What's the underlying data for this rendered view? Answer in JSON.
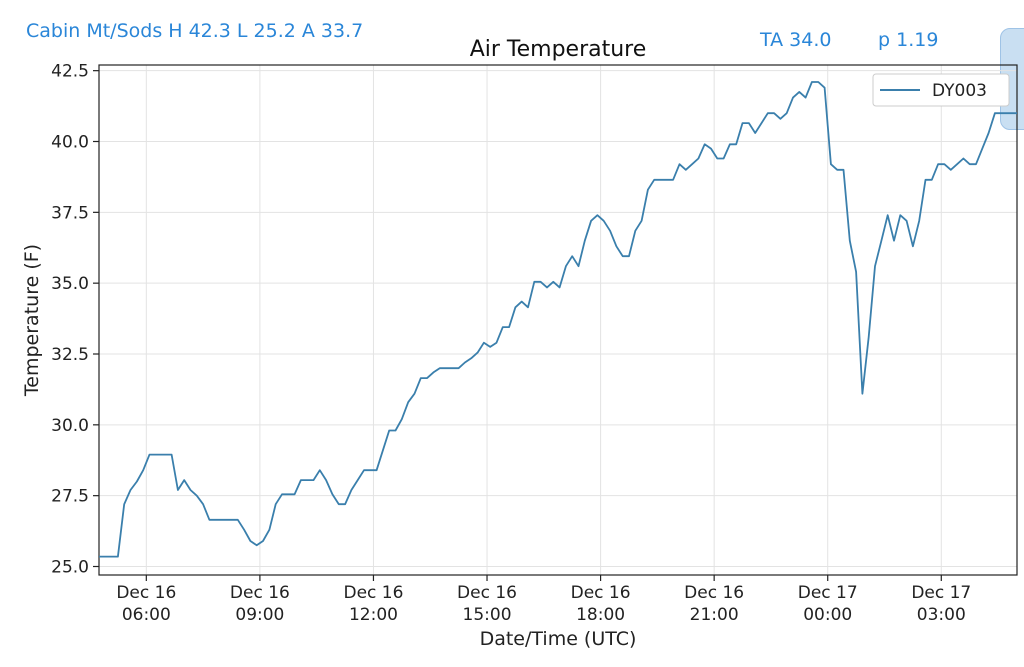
{
  "header": {
    "station_stats": "Cabin Mt/Sods H 42.3 L 25.2 A 33.7",
    "ta": "TA 34.0",
    "p": "p 1.19"
  },
  "colors": {
    "series": "#3a7fac",
    "header_text": "#2a86d8",
    "grid": "#e3e3e3"
  },
  "chart_data": {
    "type": "line",
    "title": "Air Temperature",
    "xlabel": "Date/Time (UTC)",
    "ylabel": "Temperature (F)",
    "x_range": [
      "2023-12-16T04:45",
      "2023-12-17T05:00"
    ],
    "ylim": [
      24.7,
      42.7
    ],
    "yticks": [
      25.0,
      27.5,
      30.0,
      32.5,
      35.0,
      37.5,
      40.0,
      42.5
    ],
    "ytick_labels": [
      "25.0",
      "27.5",
      "30.0",
      "32.5",
      "35.0",
      "37.5",
      "40.0",
      "42.5"
    ],
    "xticks": [
      {
        "t": "2023-12-16T06:00",
        "line1": "Dec 16",
        "line2": "06:00"
      },
      {
        "t": "2023-12-16T09:00",
        "line1": "Dec 16",
        "line2": "09:00"
      },
      {
        "t": "2023-12-16T12:00",
        "line1": "Dec 16",
        "line2": "12:00"
      },
      {
        "t": "2023-12-16T15:00",
        "line1": "Dec 16",
        "line2": "15:00"
      },
      {
        "t": "2023-12-16T18:00",
        "line1": "Dec 16",
        "line2": "18:00"
      },
      {
        "t": "2023-12-16T21:00",
        "line1": "Dec 16",
        "line2": "21:00"
      },
      {
        "t": "2023-12-17T00:00",
        "line1": "Dec 17",
        "line2": "00:00"
      },
      {
        "t": "2023-12-17T03:00",
        "line1": "Dec 17",
        "line2": "03:00"
      }
    ],
    "grid": true,
    "legend": "top-right",
    "series": [
      {
        "name": "DY003",
        "points": [
          [
            "2023-12-16T04:45",
            25.35
          ],
          [
            "2023-12-16T05:15",
            25.35
          ],
          [
            "2023-12-16T05:25",
            27.2
          ],
          [
            "2023-12-16T05:35",
            27.7
          ],
          [
            "2023-12-16T05:45",
            28.0
          ],
          [
            "2023-12-16T05:55",
            28.4
          ],
          [
            "2023-12-16T06:05",
            28.95
          ],
          [
            "2023-12-16T06:40",
            28.95
          ],
          [
            "2023-12-16T06:50",
            27.7
          ],
          [
            "2023-12-16T07:00",
            28.05
          ],
          [
            "2023-12-16T07:10",
            27.7
          ],
          [
            "2023-12-16T07:20",
            27.5
          ],
          [
            "2023-12-16T07:30",
            27.2
          ],
          [
            "2023-12-16T07:40",
            26.65
          ],
          [
            "2023-12-16T08:25",
            26.65
          ],
          [
            "2023-12-16T08:35",
            26.3
          ],
          [
            "2023-12-16T08:45",
            25.9
          ],
          [
            "2023-12-16T08:55",
            25.75
          ],
          [
            "2023-12-16T09:05",
            25.9
          ],
          [
            "2023-12-16T09:15",
            26.3
          ],
          [
            "2023-12-16T09:25",
            27.2
          ],
          [
            "2023-12-16T09:35",
            27.55
          ],
          [
            "2023-12-16T09:55",
            27.55
          ],
          [
            "2023-12-16T10:05",
            28.05
          ],
          [
            "2023-12-16T10:25",
            28.05
          ],
          [
            "2023-12-16T10:35",
            28.4
          ],
          [
            "2023-12-16T10:45",
            28.05
          ],
          [
            "2023-12-16T10:55",
            27.55
          ],
          [
            "2023-12-16T11:05",
            27.2
          ],
          [
            "2023-12-16T11:15",
            27.2
          ],
          [
            "2023-12-16T11:25",
            27.7
          ],
          [
            "2023-12-16T11:35",
            28.05
          ],
          [
            "2023-12-16T11:45",
            28.4
          ],
          [
            "2023-12-16T12:05",
            28.4
          ],
          [
            "2023-12-16T12:15",
            29.1
          ],
          [
            "2023-12-16T12:25",
            29.8
          ],
          [
            "2023-12-16T12:35",
            29.8
          ],
          [
            "2023-12-16T12:45",
            30.2
          ],
          [
            "2023-12-16T12:55",
            30.8
          ],
          [
            "2023-12-16T13:05",
            31.1
          ],
          [
            "2023-12-16T13:15",
            31.65
          ],
          [
            "2023-12-16T13:25",
            31.65
          ],
          [
            "2023-12-16T13:35",
            31.85
          ],
          [
            "2023-12-16T13:45",
            32.0
          ],
          [
            "2023-12-16T14:15",
            32.0
          ],
          [
            "2023-12-16T14:25",
            32.2
          ],
          [
            "2023-12-16T14:35",
            32.35
          ],
          [
            "2023-12-16T14:45",
            32.55
          ],
          [
            "2023-12-16T14:55",
            32.9
          ],
          [
            "2023-12-16T15:05",
            32.75
          ],
          [
            "2023-12-16T15:15",
            32.9
          ],
          [
            "2023-12-16T15:25",
            33.45
          ],
          [
            "2023-12-16T15:35",
            33.45
          ],
          [
            "2023-12-16T15:45",
            34.15
          ],
          [
            "2023-12-16T15:55",
            34.35
          ],
          [
            "2023-12-16T16:05",
            34.15
          ],
          [
            "2023-12-16T16:15",
            35.05
          ],
          [
            "2023-12-16T16:25",
            35.05
          ],
          [
            "2023-12-16T16:35",
            34.85
          ],
          [
            "2023-12-16T16:45",
            35.05
          ],
          [
            "2023-12-16T16:55",
            34.85
          ],
          [
            "2023-12-16T17:05",
            35.6
          ],
          [
            "2023-12-16T17:15",
            35.95
          ],
          [
            "2023-12-16T17:25",
            35.6
          ],
          [
            "2023-12-16T17:35",
            36.5
          ],
          [
            "2023-12-16T17:45",
            37.2
          ],
          [
            "2023-12-16T17:55",
            37.4
          ],
          [
            "2023-12-16T18:05",
            37.2
          ],
          [
            "2023-12-16T18:15",
            36.85
          ],
          [
            "2023-12-16T18:25",
            36.3
          ],
          [
            "2023-12-16T18:35",
            35.95
          ],
          [
            "2023-12-16T18:45",
            35.95
          ],
          [
            "2023-12-16T18:55",
            36.85
          ],
          [
            "2023-12-16T19:05",
            37.2
          ],
          [
            "2023-12-16T19:15",
            38.3
          ],
          [
            "2023-12-16T19:25",
            38.65
          ],
          [
            "2023-12-16T19:55",
            38.65
          ],
          [
            "2023-12-16T20:05",
            39.2
          ],
          [
            "2023-12-16T20:15",
            39.0
          ],
          [
            "2023-12-16T20:25",
            39.2
          ],
          [
            "2023-12-16T20:35",
            39.4
          ],
          [
            "2023-12-16T20:45",
            39.9
          ],
          [
            "2023-12-16T20:55",
            39.75
          ],
          [
            "2023-12-16T21:05",
            39.4
          ],
          [
            "2023-12-16T21:15",
            39.4
          ],
          [
            "2023-12-16T21:25",
            39.9
          ],
          [
            "2023-12-16T21:35",
            39.9
          ],
          [
            "2023-12-16T21:45",
            40.65
          ],
          [
            "2023-12-16T21:55",
            40.65
          ],
          [
            "2023-12-16T22:05",
            40.3
          ],
          [
            "2023-12-16T22:15",
            40.65
          ],
          [
            "2023-12-16T22:25",
            41.0
          ],
          [
            "2023-12-16T22:35",
            41.0
          ],
          [
            "2023-12-16T22:45",
            40.8
          ],
          [
            "2023-12-16T22:55",
            41.0
          ],
          [
            "2023-12-16T23:05",
            41.55
          ],
          [
            "2023-12-16T23:15",
            41.75
          ],
          [
            "2023-12-16T23:25",
            41.55
          ],
          [
            "2023-12-16T23:35",
            42.1
          ],
          [
            "2023-12-16T23:45",
            42.1
          ],
          [
            "2023-12-16T23:55",
            41.9
          ],
          [
            "2023-12-17T00:05",
            39.2
          ],
          [
            "2023-12-17T00:15",
            39.0
          ],
          [
            "2023-12-17T00:25",
            39.0
          ],
          [
            "2023-12-17T00:35",
            36.5
          ],
          [
            "2023-12-17T00:45",
            35.4
          ],
          [
            "2023-12-17T00:55",
            31.1
          ],
          [
            "2023-12-17T01:05",
            33.1
          ],
          [
            "2023-12-17T01:15",
            35.6
          ],
          [
            "2023-12-17T01:25",
            36.5
          ],
          [
            "2023-12-17T01:35",
            37.4
          ],
          [
            "2023-12-17T01:45",
            36.5
          ],
          [
            "2023-12-17T01:55",
            37.4
          ],
          [
            "2023-12-17T02:05",
            37.2
          ],
          [
            "2023-12-17T02:15",
            36.3
          ],
          [
            "2023-12-17T02:25",
            37.2
          ],
          [
            "2023-12-17T02:35",
            38.65
          ],
          [
            "2023-12-17T02:45",
            38.65
          ],
          [
            "2023-12-17T02:55",
            39.2
          ],
          [
            "2023-12-17T03:05",
            39.2
          ],
          [
            "2023-12-17T03:15",
            39.0
          ],
          [
            "2023-12-17T03:25",
            39.2
          ],
          [
            "2023-12-17T03:35",
            39.4
          ],
          [
            "2023-12-17T03:45",
            39.2
          ],
          [
            "2023-12-17T03:55",
            39.2
          ],
          [
            "2023-12-17T04:05",
            39.75
          ],
          [
            "2023-12-17T04:15",
            40.3
          ],
          [
            "2023-12-17T04:25",
            41.0
          ],
          [
            "2023-12-17T05:00",
            41.0
          ]
        ]
      }
    ]
  }
}
